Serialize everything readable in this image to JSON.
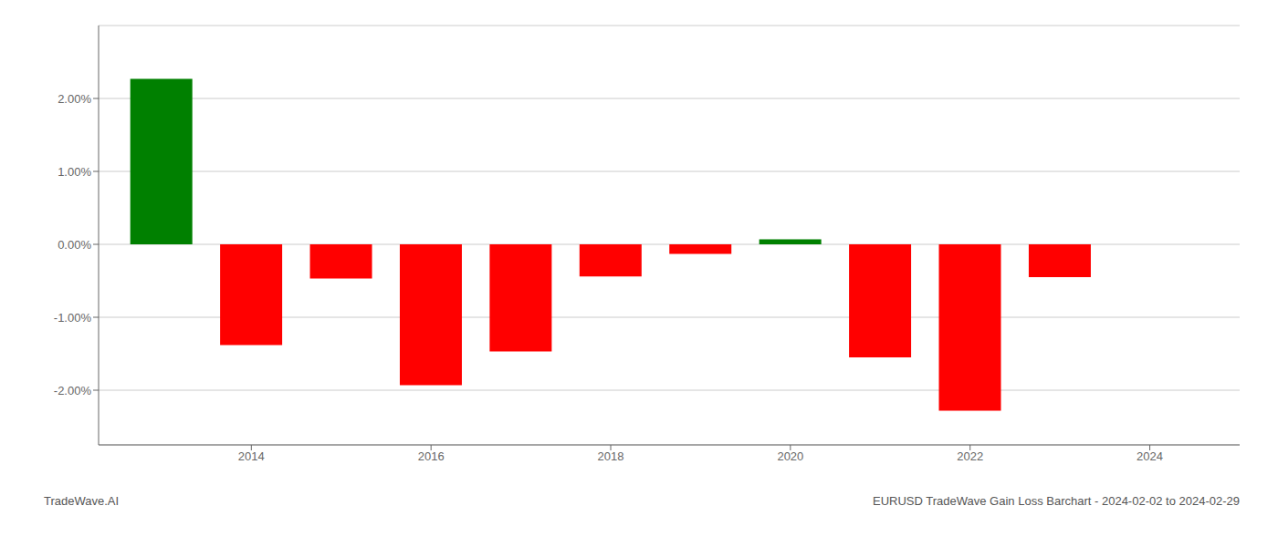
{
  "chart_data": {
    "type": "bar",
    "x": [
      2013,
      2014,
      2015,
      2016,
      2017,
      2018,
      2019,
      2020,
      2021,
      2022,
      2023
    ],
    "values": [
      0.0227,
      -0.0138,
      -0.0047,
      -0.0193,
      -0.0147,
      -0.0044,
      -0.0013,
      0.0007,
      -0.0155,
      -0.0228,
      -0.0045
    ],
    "colors": [
      "#008000",
      "#ff0000",
      "#ff0000",
      "#ff0000",
      "#ff0000",
      "#ff0000",
      "#ff0000",
      "#008000",
      "#ff0000",
      "#ff0000",
      "#ff0000"
    ],
    "xlim": [
      2012.3,
      2025.0
    ],
    "xticks": [
      2014,
      2016,
      2018,
      2020,
      2022,
      2024
    ],
    "ylim": [
      -0.0275,
      0.03
    ],
    "yticks": [
      {
        "value": -0.02,
        "label": "-2.00%"
      },
      {
        "value": -0.01,
        "label": "-1.00%"
      },
      {
        "value": 0.0,
        "label": "0.00%"
      },
      {
        "value": 0.01,
        "label": "1.00%"
      },
      {
        "value": 0.02,
        "label": "2.00%"
      }
    ],
    "grid": true,
    "annotations": [
      "TradeWave.AI",
      "EURUSD TradeWave Gain Loss Barchart - 2024-02-02 to 2024-02-29"
    ]
  }
}
